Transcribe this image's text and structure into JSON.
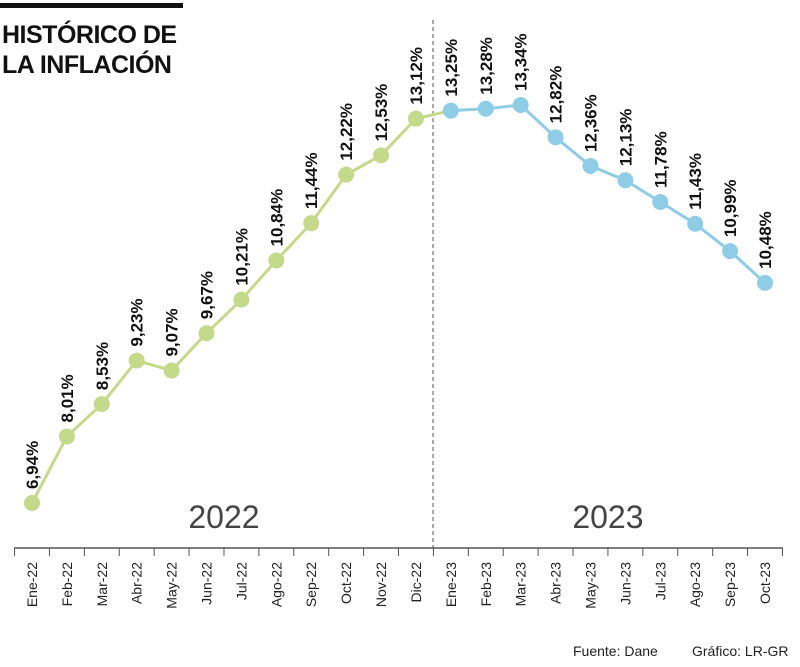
{
  "chart_data": {
    "type": "line",
    "title": "HISTÓRICO DE LA INFLACIÓN",
    "categories": [
      "Ene-22",
      "Feb-22",
      "Mar-22",
      "Abr-22",
      "May-22",
      "Jun-22",
      "Jul-22",
      "Ago-22",
      "Sep-22",
      "Oct-22",
      "Nov-22",
      "Dic-22",
      "Ene-23",
      "Feb-23",
      "Mar-23",
      "Abr-23",
      "May-23",
      "Jun-23",
      "Jul-23",
      "Ago-23",
      "Sep-23",
      "Oct-23"
    ],
    "series": [
      {
        "name": "2022",
        "color": "#c5d98b",
        "values": [
          6.94,
          8.01,
          8.53,
          9.23,
          9.07,
          9.67,
          10.21,
          10.84,
          11.44,
          12.22,
          12.53,
          13.12,
          null,
          null,
          null,
          null,
          null,
          null,
          null,
          null,
          null,
          null
        ],
        "value_labels": [
          "6,94%",
          "8,01%",
          "8,53%",
          "9,23%",
          "9,07%",
          "9,67%",
          "10,21%",
          "10,84%",
          "11,44%",
          "12,22%",
          "12,53%",
          "13,12%",
          null,
          null,
          null,
          null,
          null,
          null,
          null,
          null,
          null,
          null
        ]
      },
      {
        "name": "2023",
        "color": "#8fcde6",
        "values": [
          null,
          null,
          null,
          null,
          null,
          null,
          null,
          null,
          null,
          null,
          null,
          null,
          13.25,
          13.28,
          13.34,
          12.82,
          12.36,
          12.13,
          11.78,
          11.43,
          10.99,
          10.48
        ],
        "value_labels": [
          null,
          null,
          null,
          null,
          null,
          null,
          null,
          null,
          null,
          null,
          null,
          null,
          "13,25%",
          "13,28%",
          "13,34%",
          "12,82%",
          "12,36%",
          "12,13%",
          "11,78%",
          "11,43%",
          "10,99%",
          "10,48%"
        ]
      }
    ],
    "source": "Fuente: Dane",
    "credit": "Gráfico: LR-GR"
  }
}
